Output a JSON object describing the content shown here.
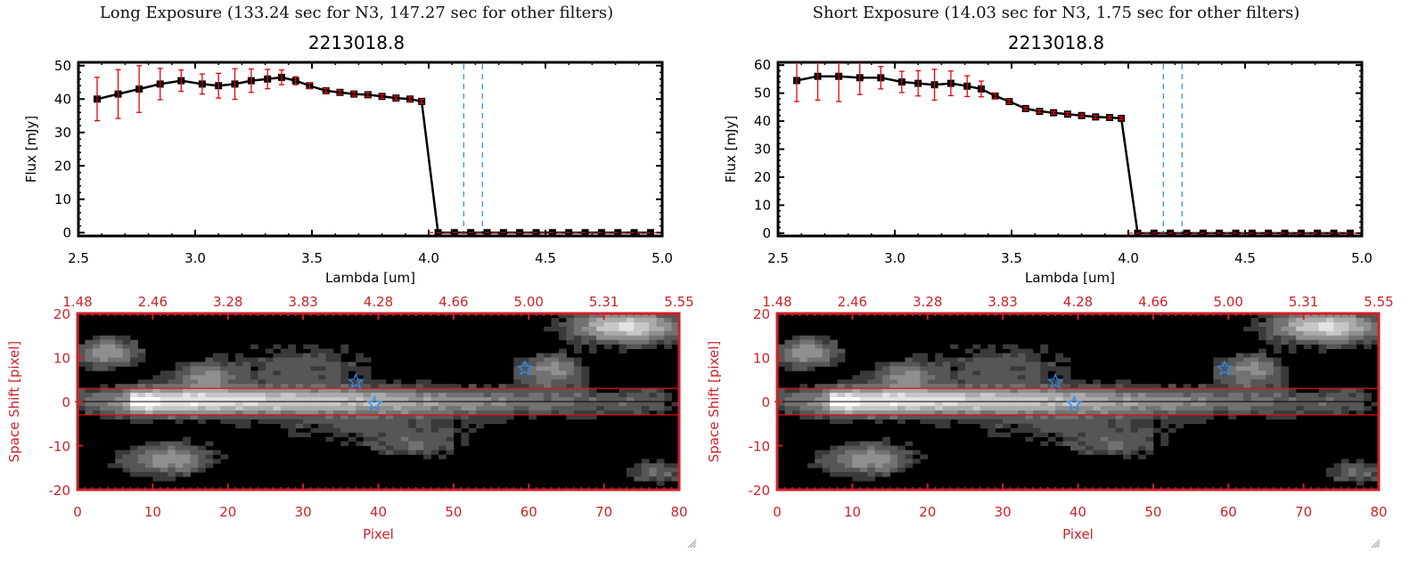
{
  "colors": {
    "spectrum_line": "#000000",
    "error_bars": "#e8000b",
    "blue_lines": "#1f8fe0",
    "red_axes": "#cc2229",
    "star_markers": "#2a8af0"
  },
  "panels": [
    {
      "exposure_title": "Long Exposure (133.24 sec for N3, 147.27 sec for other filters)",
      "object_id": "2213018.8"
    },
    {
      "exposure_title": "Short Exposure (14.03 sec for N3, 1.75 sec for other filters)",
      "object_id": "2213018.8"
    }
  ],
  "chart_data": [
    {
      "type": "line",
      "title": "2213018.8",
      "xlabel": "Lambda [um]",
      "ylabel": "Flux [mJy]",
      "xlim": [
        2.5,
        5.0
      ],
      "ylim": [
        -1,
        51
      ],
      "xticks": [
        "2.5",
        "3.0",
        "3.5",
        "4.0",
        "4.5",
        "5.0"
      ],
      "yticks": [
        "0",
        "10",
        "20",
        "30",
        "40",
        "50"
      ],
      "vlines_dashed": [
        4.15,
        4.23
      ],
      "hline_dashed": 0,
      "series": [
        {
          "name": "flux",
          "x": [
            2.58,
            2.67,
            2.76,
            2.85,
            2.94,
            3.03,
            3.1,
            3.17,
            3.24,
            3.31,
            3.37,
            3.43,
            3.49,
            3.56,
            3.62,
            3.68,
            3.74,
            3.8,
            3.86,
            3.92,
            3.97,
            4.04,
            4.11,
            4.18,
            4.25,
            4.32,
            4.39,
            4.46,
            4.53,
            4.6,
            4.67,
            4.74,
            4.81,
            4.88,
            4.95
          ],
          "y": [
            40,
            41.5,
            43,
            44.5,
            45.5,
            44.5,
            44,
            44.5,
            45.5,
            46,
            46.5,
            45.5,
            44,
            42.5,
            42,
            41.5,
            41.3,
            40.8,
            40.3,
            40,
            39.3,
            0,
            0,
            0,
            0,
            0,
            0,
            0,
            0,
            0,
            0,
            0,
            0,
            0,
            0
          ],
          "err": [
            6.5,
            7.3,
            7,
            4.7,
            3.2,
            3,
            3.7,
            4.6,
            3.5,
            2.9,
            2.2,
            1.2,
            0.8,
            0.7,
            0.6,
            0.6,
            0.6,
            0.6,
            0.6,
            0.6,
            0.6,
            0,
            0,
            0,
            0,
            0,
            0,
            0,
            0,
            0,
            0,
            0,
            0,
            0,
            0
          ]
        }
      ]
    },
    {
      "type": "heatmap",
      "xlabel": "Pixel",
      "ylabel": "Space Shift [pixel]",
      "xlim": [
        0,
        80
      ],
      "ylim": [
        -20,
        20
      ],
      "xticks": [
        "0",
        "10",
        "20",
        "30",
        "40",
        "50",
        "60",
        "70",
        "80"
      ],
      "yticks": [
        "-20",
        "-10",
        "0",
        "10",
        "20"
      ],
      "top_ticks": [
        "1.48",
        "2.46",
        "3.28",
        "3.83",
        "4.28",
        "4.66",
        "5.00",
        "5.31",
        "5.55"
      ],
      "aperture_lines": [
        3,
        -3
      ],
      "center_line": 0,
      "stars": [
        {
          "x": 37,
          "y": 4.5
        },
        {
          "x": 39.5,
          "y": -0.5
        },
        {
          "x": 59.5,
          "y": 7.5
        }
      ]
    },
    {
      "type": "line",
      "title": "2213018.8",
      "xlabel": "Lambda [um]",
      "ylabel": "Flux [mJy]",
      "xlim": [
        2.5,
        5.0
      ],
      "ylim": [
        -1,
        61
      ],
      "xticks": [
        "2.5",
        "3.0",
        "3.5",
        "4.0",
        "4.5",
        "5.0"
      ],
      "yticks": [
        "0",
        "10",
        "20",
        "30",
        "40",
        "50",
        "60"
      ],
      "vlines_dashed": [
        4.15,
        4.23
      ],
      "hline_dashed": 0,
      "series": [
        {
          "name": "flux",
          "x": [
            2.58,
            2.67,
            2.76,
            2.85,
            2.94,
            3.03,
            3.1,
            3.17,
            3.24,
            3.31,
            3.37,
            3.43,
            3.49,
            3.56,
            3.62,
            3.68,
            3.74,
            3.8,
            3.86,
            3.92,
            3.97,
            4.04,
            4.11,
            4.18,
            4.25,
            4.32,
            4.39,
            4.46,
            4.53,
            4.6,
            4.67,
            4.74,
            4.81,
            4.88,
            4.95
          ],
          "y": [
            54.5,
            56,
            56,
            55.5,
            55.5,
            54,
            53.5,
            53,
            53.5,
            52.5,
            51.5,
            49,
            47,
            44.5,
            43.5,
            43,
            42.5,
            42,
            41.5,
            41.3,
            41,
            0,
            0,
            0,
            0,
            0,
            0,
            0,
            0,
            0,
            0,
            0,
            0,
            0,
            0
          ],
          "err": [
            7.5,
            8.5,
            9,
            6,
            4,
            3.8,
            4.5,
            5.5,
            4.4,
            3.7,
            2.8,
            1,
            0.7,
            0.6,
            0.5,
            0.5,
            0.5,
            0.5,
            0.5,
            0.5,
            0.5,
            0,
            0,
            0,
            0,
            0,
            0,
            0,
            0,
            0,
            0,
            0,
            0,
            0,
            0
          ]
        }
      ]
    },
    {
      "type": "heatmap",
      "xlabel": "Pixel",
      "ylabel": "Space Shift [pixel]",
      "xlim": [
        0,
        80
      ],
      "ylim": [
        -20,
        20
      ],
      "xticks": [
        "0",
        "10",
        "20",
        "30",
        "40",
        "50",
        "60",
        "70",
        "80"
      ],
      "yticks": [
        "-20",
        "-10",
        "0",
        "10",
        "20"
      ],
      "top_ticks": [
        "1.48",
        "2.46",
        "3.28",
        "3.83",
        "4.28",
        "4.66",
        "5.00",
        "5.31",
        "5.55"
      ],
      "aperture_lines": [
        3,
        -3
      ],
      "center_line": 0,
      "stars": [
        {
          "x": 37,
          "y": 4.5
        },
        {
          "x": 39.5,
          "y": -0.5
        },
        {
          "x": 59.5,
          "y": 7.5
        }
      ]
    }
  ]
}
